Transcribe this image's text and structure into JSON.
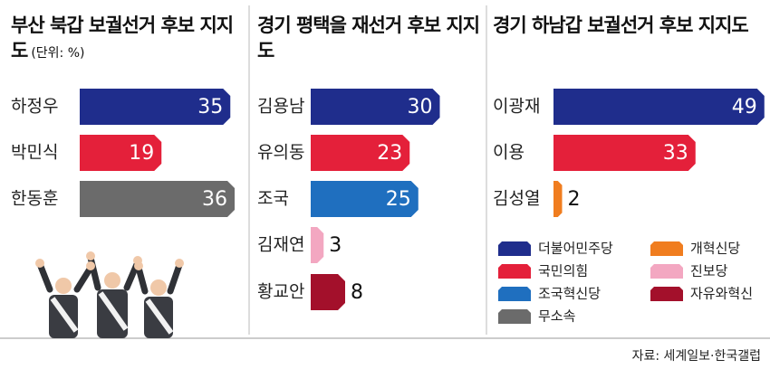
{
  "chart_data": [
    {
      "type": "bar",
      "title": "부산 북갑 보궐선거 후보 지지도",
      "subtitle": "(단위: %)",
      "categories": [
        "하정우",
        "박민식",
        "한동훈"
      ],
      "values": [
        35,
        19,
        36
      ],
      "colors": [
        "#1f2d8c",
        "#e4203a",
        "#6b6b6b"
      ]
    },
    {
      "type": "bar",
      "title": "경기 평택을 재선거 후보 지지도",
      "categories": [
        "김용남",
        "유의동",
        "조국",
        "김재연",
        "황교안"
      ],
      "values": [
        30,
        23,
        25,
        3,
        8
      ],
      "colors": [
        "#1f2d8c",
        "#e4203a",
        "#1f6fbf",
        "#f3a7c1",
        "#a3102b"
      ]
    },
    {
      "type": "bar",
      "title": "경기 하남갑 보궐선거 후보 지지도",
      "categories": [
        "이광재",
        "이용",
        "김성열"
      ],
      "values": [
        49,
        33,
        2
      ],
      "colors": [
        "#1f2d8c",
        "#e4203a",
        "#f07d1f"
      ]
    }
  ],
  "legend": [
    {
      "name": "더불어민주당",
      "color": "#1f2d8c"
    },
    {
      "name": "국민의힘",
      "color": "#e4203a"
    },
    {
      "name": "조국혁신당",
      "color": "#1f6fbf"
    },
    {
      "name": "무소속",
      "color": "#6b6b6b"
    },
    {
      "name": "개혁신당",
      "color": "#f07d1f"
    },
    {
      "name": "진보당",
      "color": "#f3a7c1"
    },
    {
      "name": "자유와혁신",
      "color": "#a3102b"
    }
  ],
  "source": "자료: 세계일보·한국갤럽"
}
